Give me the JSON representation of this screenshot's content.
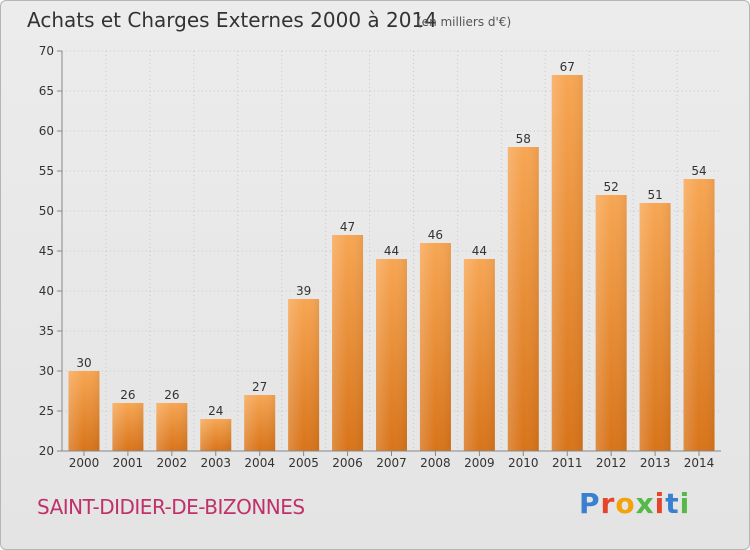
{
  "header": {
    "title": "Achats et Charges Externes 2000 à 2014",
    "subtitle": "(en milliers d'€)"
  },
  "footer": {
    "commune": "SAINT-DIDIER-DE-BIZONNES",
    "logo_text": "Proxiti",
    "logo_colors": [
      "#3a7fd0",
      "#e7452a",
      "#f2a20a",
      "#54b947",
      "#e7452a",
      "#3a7fd0",
      "#54b947"
    ]
  },
  "chart_data": {
    "type": "bar",
    "categories": [
      "2000",
      "2001",
      "2002",
      "2003",
      "2004",
      "2005",
      "2006",
      "2007",
      "2008",
      "2009",
      "2010",
      "2011",
      "2012",
      "2013",
      "2014"
    ],
    "values": [
      30,
      26,
      26,
      24,
      27,
      39,
      47,
      44,
      46,
      44,
      58,
      67,
      52,
      51,
      54
    ],
    "title": "Achats et Charges Externes 2000 à 2014",
    "xlabel": "",
    "ylabel": "",
    "ylim": [
      20,
      70
    ],
    "yticks": [
      20,
      25,
      30,
      35,
      40,
      45,
      50,
      55,
      60,
      65,
      70
    ],
    "grid": true,
    "bar_color_top": "#f7a653",
    "bar_color_bottom": "#d8741a"
  }
}
